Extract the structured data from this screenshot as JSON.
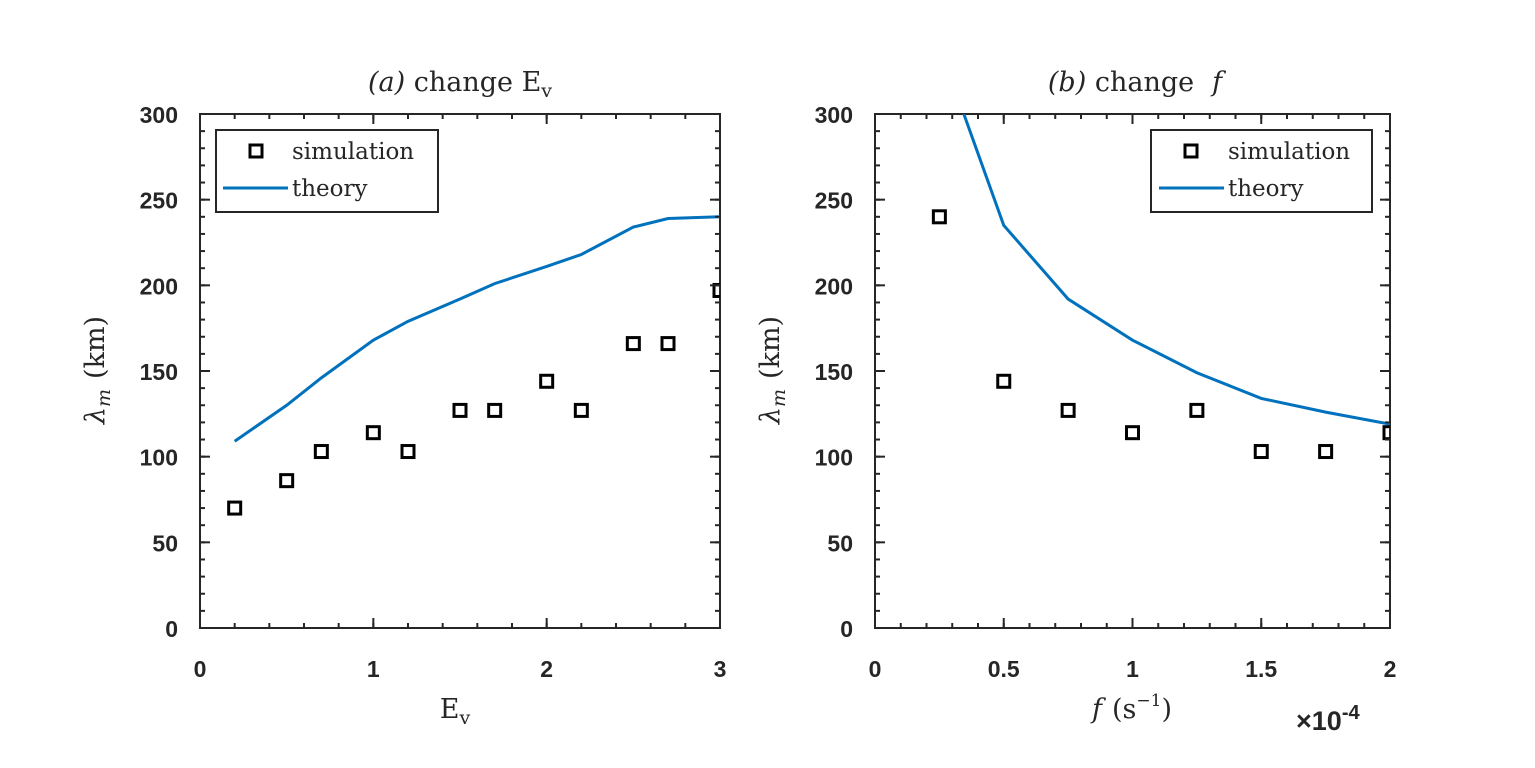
{
  "chart_data": [
    {
      "type": "line",
      "title_prefix": "(a)",
      "title_text": "change E",
      "title_sub": "v",
      "xlabel": "E",
      "xlabel_sub": "v",
      "ylabel_symbol": "λ",
      "ylabel_sub": "m",
      "ylabel_unit": "(km)",
      "xlim": [
        0,
        3
      ],
      "ylim": [
        0,
        300
      ],
      "xticks": [
        0,
        1,
        2,
        3
      ],
      "xtick_labels": [
        "0",
        "1",
        "2",
        "3"
      ],
      "yticks": [
        0,
        50,
        100,
        150,
        200,
        250,
        300
      ],
      "ytick_labels": [
        "0",
        "50",
        "100",
        "150",
        "200",
        "250",
        "300"
      ],
      "legend_position": "top-left",
      "series": [
        {
          "name": "simulation",
          "style": "marker-square",
          "color": "#000000",
          "x": [
            0.2,
            0.5,
            0.7,
            1.0,
            1.2,
            1.5,
            1.7,
            2.0,
            2.2,
            2.5,
            2.7,
            3.0
          ],
          "values": [
            70,
            86,
            103,
            114,
            103,
            127,
            127,
            144,
            127,
            166,
            166,
            197
          ]
        },
        {
          "name": "theory",
          "style": "line",
          "color": "#0072BD",
          "x": [
            0.2,
            0.5,
            0.7,
            1.0,
            1.2,
            1.5,
            1.7,
            2.0,
            2.2,
            2.5,
            2.7,
            3.0
          ],
          "values": [
            109,
            130,
            146,
            168,
            179,
            192,
            201,
            211,
            218,
            234,
            239,
            240
          ]
        }
      ]
    },
    {
      "type": "line",
      "title_prefix": "(b)",
      "title_text": "change",
      "title_var": "f",
      "xlabel_var": "f",
      "xlabel_unit": "(s",
      "xlabel_exp": "−1",
      "xlabel_close": ")",
      "x_multiplier_base": "×10",
      "x_multiplier_exp": "-4",
      "ylabel_symbol": "λ",
      "ylabel_sub": "m",
      "ylabel_unit": "(km)",
      "xlim": [
        0,
        2
      ],
      "ylim": [
        0,
        300
      ],
      "xticks": [
        0,
        0.5,
        1,
        1.5,
        2
      ],
      "xtick_labels": [
        "0",
        "0.5",
        "1",
        "1.5",
        "2"
      ],
      "yticks": [
        0,
        50,
        100,
        150,
        200,
        250,
        300
      ],
      "ytick_labels": [
        "0",
        "50",
        "100",
        "150",
        "200",
        "250",
        "300"
      ],
      "legend_position": "top-right",
      "series": [
        {
          "name": "simulation",
          "style": "marker-square",
          "color": "#000000",
          "x": [
            0.25,
            0.5,
            0.75,
            1.0,
            1.25,
            1.5,
            1.75,
            2.0
          ],
          "values": [
            240,
            144,
            127,
            114,
            127,
            103,
            103,
            114
          ]
        },
        {
          "name": "theory",
          "style": "line",
          "color": "#0072BD",
          "x": [
            0.345,
            0.5,
            0.75,
            1.0,
            1.25,
            1.5,
            1.75,
            2.0
          ],
          "values": [
            300,
            235,
            192,
            168,
            149,
            134,
            126,
            119
          ]
        }
      ]
    }
  ]
}
